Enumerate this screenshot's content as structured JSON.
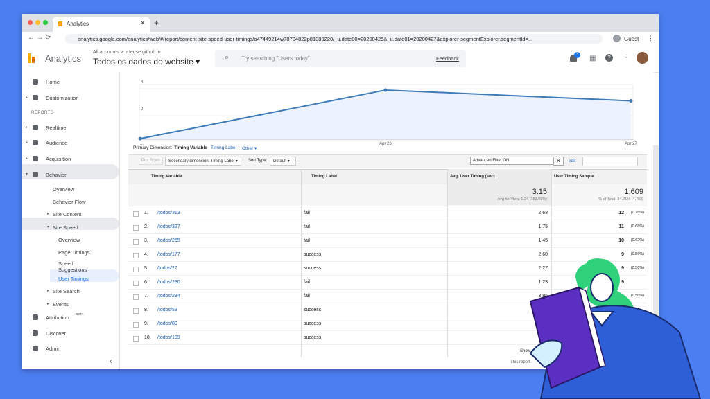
{
  "browser": {
    "tab_title": "Analytics",
    "url": "analytics.google.com/analytics/web/#/report/content-site-speed-user-timings/a47449214w78704822p81380220/_u.date00=20200425&_u.date01=20200427&explorer-segmentExplorer.segmentId=...",
    "profile": "Guest"
  },
  "header": {
    "product": "Analytics",
    "breadcrumb": "All accounts > ortense.github.io",
    "property": "Todos os dados do website ▾",
    "search_placeholder": "Try searching \"Users today\"",
    "feedback": "Feedback",
    "notification_count": "3"
  },
  "sidebar": {
    "items": [
      {
        "label": "Home",
        "level": 0
      },
      {
        "label": "Customization",
        "level": 0,
        "arrow": "▸"
      },
      {
        "label": "REPORTS",
        "level": "section"
      },
      {
        "label": "Realtime",
        "level": 0,
        "arrow": "▸"
      },
      {
        "label": "Audience",
        "level": 0,
        "arrow": "▸"
      },
      {
        "label": "Acquisition",
        "level": 0,
        "arrow": "▸"
      },
      {
        "label": "Behavior",
        "level": 0,
        "arrow": "▾"
      },
      {
        "label": "Overview",
        "level": 1
      },
      {
        "label": "Behavior Flow",
        "level": 1
      },
      {
        "label": "Site Content",
        "level": 1,
        "arrow": "▸"
      },
      {
        "label": "Site Speed",
        "level": 1,
        "arrow": "▾"
      },
      {
        "label": "Overview",
        "level": 2
      },
      {
        "label": "Page Timings",
        "level": 2
      },
      {
        "label": "Speed Suggestions",
        "level": 2
      },
      {
        "label": "User Timings",
        "level": 2
      },
      {
        "label": "Site Search",
        "level": 1,
        "arrow": "▸"
      },
      {
        "label": "Events",
        "level": 1,
        "arrow": "▸"
      },
      {
        "label": "Attribution",
        "level": 0,
        "badge": "BETA"
      },
      {
        "label": "Discover",
        "level": 0
      },
      {
        "label": "Admin",
        "level": 0
      }
    ],
    "collapse": "‹"
  },
  "trend": {
    "x_labels": [
      "...",
      "Apr 26",
      "Apr 27"
    ],
    "yticks": [
      2,
      4
    ],
    "values": [
      0.3,
      3.9,
      3.1
    ]
  },
  "report": {
    "primary_dimension": {
      "label": "Primary Dimension:",
      "options": [
        "Timing Variable",
        "Timing Label",
        "Other ▾"
      ]
    },
    "toolbar": {
      "plot_rows": "Plot Rows",
      "secondary_dimension": "Secondary dimension: Timing Label ▾",
      "sort_type_label": "Sort Type:",
      "sort_type": "Default ▾",
      "filter": "Advanced Filter ON",
      "edit": "edit"
    },
    "table": {
      "columns": [
        "Timing Variable",
        "Timing Label",
        "Avg. User Timing (sec)",
        "User Timing Sample ↓"
      ],
      "totals": {
        "avg": "3.15",
        "avg_note": "Avg for View: 1.24 (153.68%)",
        "sample": "1,609",
        "sample_note": "% of Total: 34.21% (4,703)"
      },
      "rows": [
        {
          "index": "1.",
          "variable": "/todos/313",
          "label": "fail",
          "avg": "2.68",
          "sample": "12",
          "sample_pct": "(0.75%)"
        },
        {
          "index": "2.",
          "variable": "/todos/327",
          "label": "fail",
          "avg": "1.75",
          "sample": "11",
          "sample_pct": "(0.68%)"
        },
        {
          "index": "3.",
          "variable": "/todos/255",
          "label": "fail",
          "avg": "1.45",
          "sample": "10",
          "sample_pct": "(0.62%)"
        },
        {
          "index": "4.",
          "variable": "/todos/177",
          "label": "success",
          "avg": "2.60",
          "sample": "9",
          "sample_pct": "(0.56%)"
        },
        {
          "index": "5.",
          "variable": "/todos/27",
          "label": "success",
          "avg": "2.27",
          "sample": "9",
          "sample_pct": "(0.56%)"
        },
        {
          "index": "6.",
          "variable": "/todos/280",
          "label": "fail",
          "avg": "1.23",
          "sample": "9"
        },
        {
          "index": "7.",
          "variable": "/todos/284",
          "label": "fail",
          "avg": "3.85",
          "sample_pct": "(0.56%)"
        },
        {
          "index": "8.",
          "variable": "/todos/53",
          "label": "success"
        },
        {
          "index": "9.",
          "variable": "/todos/80",
          "label": "success"
        },
        {
          "index": "10.",
          "variable": "/todos/109",
          "label": "success"
        }
      ]
    }
  },
  "footer": {
    "show": "Show",
    "note": "This report"
  }
}
